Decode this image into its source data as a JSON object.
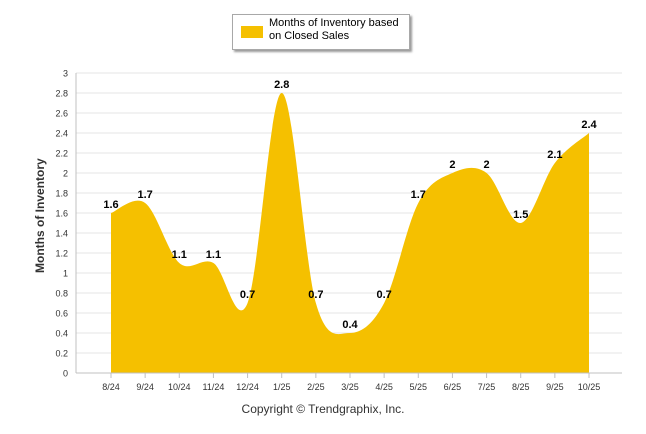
{
  "chart_data": {
    "type": "area",
    "categories": [
      "8/24",
      "9/24",
      "10/24",
      "11/24",
      "12/24",
      "1/25",
      "2/25",
      "3/25",
      "4/25",
      "5/25",
      "6/25",
      "7/25",
      "8/25",
      "9/25",
      "10/25"
    ],
    "series": [
      {
        "name": "Months of Inventory based on Closed Sales",
        "values": [
          1.6,
          1.7,
          1.1,
          1.1,
          0.7,
          2.8,
          0.7,
          0.4,
          0.7,
          1.7,
          2,
          2,
          1.5,
          2.1,
          2.4
        ]
      }
    ],
    "data_labels": [
      "1.6",
      "1.7",
      "1.1",
      "1.1",
      "0.7",
      "2.8",
      "0.7",
      "0.4",
      "0.7",
      "1.7",
      "2",
      "2",
      "1.5",
      "2.1",
      "2.4"
    ],
    "y_ticks": [
      "0",
      "0.2",
      "0.4",
      "0.6",
      "0.8",
      "1",
      "1.2",
      "1.4",
      "1.6",
      "1.8",
      "2",
      "2.2",
      "2.4",
      "2.6",
      "2.8",
      "3"
    ],
    "ylim": [
      0,
      3
    ],
    "ylabel": "Months of Inventory",
    "xlabel": "",
    "legend": {
      "label_line1": "Months of Inventory based",
      "label_line2": "on Closed Sales",
      "position": "top-center"
    },
    "grid": true,
    "colors": {
      "area": "#f5c000",
      "grid": "#e6e6e6",
      "axis": "#c0c0c0"
    }
  },
  "footer": {
    "copyright": "Copyright © Trendgraphix, Inc."
  }
}
